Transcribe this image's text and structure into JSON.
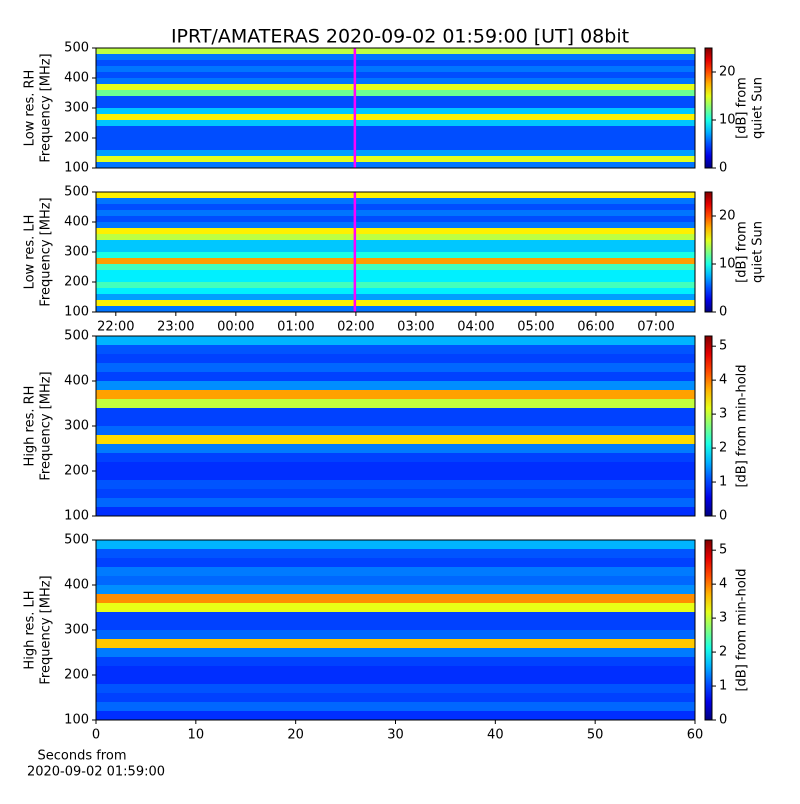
{
  "chart_data": [
    {
      "type": "heatmap",
      "title": "IPRT/AMATERAS 2020-09-02 01:59:00 [UT]   08bit",
      "ylabel": [
        "Low res. RH",
        "Frequency [MHz]"
      ],
      "ylim": [
        100,
        500
      ],
      "yticks": [
        100,
        200,
        300,
        400,
        500
      ],
      "xlim": [
        21.67,
        31.65
      ],
      "vline": 25.983,
      "vline_color": "#ff00ff",
      "freq_edges": [
        100,
        120,
        140,
        160,
        180,
        200,
        220,
        240,
        260,
        280,
        300,
        320,
        340,
        360,
        380,
        400,
        420,
        440,
        460,
        480,
        500
      ],
      "values": [
        6,
        15,
        7,
        5,
        5,
        5,
        5,
        8,
        16,
        8,
        5,
        5,
        12,
        15,
        6,
        5,
        6,
        5,
        6,
        14
      ],
      "clim": [
        0,
        25
      ],
      "cticks": [
        0,
        10,
        20
      ],
      "clabel": [
        "[dB] from",
        "quiet Sun"
      ]
    },
    {
      "type": "heatmap",
      "ylabel": [
        "Low res. LH",
        "Frequency [MHz]"
      ],
      "ylim": [
        100,
        500
      ],
      "yticks": [
        100,
        200,
        300,
        400,
        500
      ],
      "xlim": [
        21.67,
        31.65
      ],
      "vline": 25.983,
      "vline_color": "#ff00ff",
      "xticks": [
        {
          "value": 22,
          "label": "22:00"
        },
        {
          "value": 23,
          "label": "23:00"
        },
        {
          "value": 24,
          "label": "00:00"
        },
        {
          "value": 25,
          "label": "01:00"
        },
        {
          "value": 26,
          "label": "02:00"
        },
        {
          "value": 27,
          "label": "03:00"
        },
        {
          "value": 28,
          "label": "04:00"
        },
        {
          "value": 29,
          "label": "05:00"
        },
        {
          "value": 30,
          "label": "06:00"
        },
        {
          "value": 31,
          "label": "07:00"
        }
      ],
      "freq_edges": [
        100,
        120,
        140,
        160,
        180,
        200,
        220,
        240,
        260,
        280,
        300,
        320,
        340,
        360,
        380,
        400,
        420,
        440,
        460,
        480,
        500
      ],
      "values": [
        6,
        16,
        7,
        9,
        11,
        9,
        9,
        11,
        18,
        10,
        8,
        8,
        14,
        16,
        6,
        5,
        6,
        5,
        6,
        16
      ],
      "clim": [
        0,
        25
      ],
      "cticks": [
        0,
        10,
        20
      ],
      "clabel": [
        "[dB] from",
        "quiet Sun"
      ]
    },
    {
      "type": "heatmap",
      "ylabel": [
        "High res. RH",
        "Frequency [MHz]"
      ],
      "ylim": [
        100,
        500
      ],
      "yticks": [
        100,
        200,
        300,
        400,
        500
      ],
      "xlim": [
        0,
        60
      ],
      "freq_edges": [
        100,
        120,
        140,
        160,
        180,
        200,
        220,
        240,
        260,
        280,
        300,
        320,
        340,
        360,
        380,
        400,
        420,
        440,
        460,
        480,
        500
      ],
      "values": [
        0.9,
        1.2,
        1.0,
        1.1,
        0.9,
        0.9,
        1.0,
        1.3,
        3.5,
        1.2,
        1.0,
        1.0,
        3.0,
        3.8,
        1.4,
        1.0,
        1.2,
        1.0,
        1.1,
        1.6
      ],
      "clim": [
        0,
        5.3
      ],
      "cticks": [
        0,
        1,
        2,
        3,
        4,
        5
      ],
      "clabel": [
        "[dB] from min-hold"
      ]
    },
    {
      "type": "heatmap",
      "ylabel": [
        "High res. LH",
        "Frequency [MHz]"
      ],
      "ylim": [
        100,
        500
      ],
      "yticks": [
        100,
        200,
        300,
        400,
        500
      ],
      "xlim": [
        0,
        60
      ],
      "xticks": [
        0,
        10,
        20,
        30,
        40,
        50,
        60
      ],
      "xlabel": [
        "Seconds from",
        "2020-09-02 01:59:00"
      ],
      "freq_edges": [
        100,
        120,
        140,
        160,
        180,
        200,
        220,
        240,
        260,
        280,
        300,
        320,
        340,
        360,
        380,
        400,
        420,
        440,
        460,
        480,
        500
      ],
      "values": [
        0.9,
        1.2,
        1.0,
        1.1,
        0.9,
        0.9,
        1.0,
        1.3,
        3.6,
        1.2,
        1.0,
        1.0,
        3.2,
        3.9,
        1.4,
        1.2,
        1.3,
        1.0,
        1.1,
        1.6
      ],
      "clim": [
        0,
        5.3
      ],
      "cticks": [
        0,
        1,
        2,
        3,
        4,
        5
      ],
      "clabel": [
        "[dB] from min-hold"
      ]
    }
  ]
}
